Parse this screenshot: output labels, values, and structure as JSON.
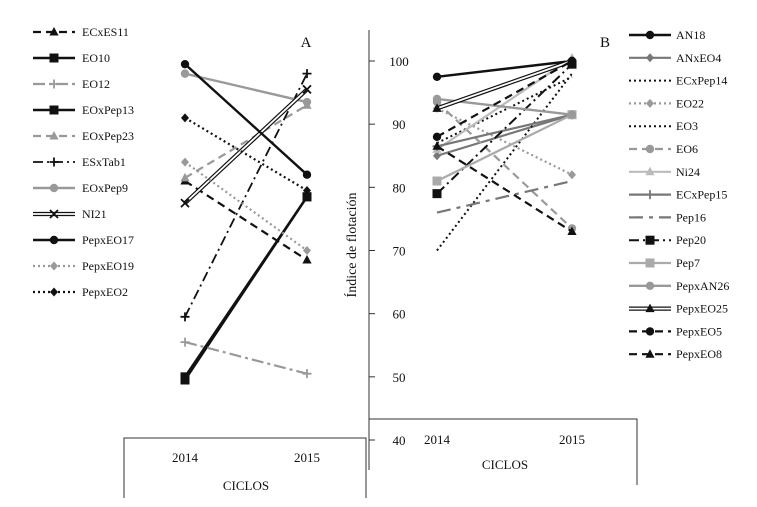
{
  "chart_data": [
    {
      "type": "line",
      "panel": "A",
      "xlabel": "CICLOS",
      "ylabel": "Índice de flotación",
      "ylim": [
        40,
        105
      ],
      "categories": [
        "2014",
        "2015"
      ],
      "series": [
        {
          "name": "ECxES11",
          "values": [
            81,
            68.5
          ],
          "color": "#111111",
          "dash": "8,5",
          "marker": "triangle",
          "width": 2.2
        },
        {
          "name": "EO10",
          "values": [
            49.5,
            78.5
          ],
          "color": "#111111",
          "dash": "",
          "marker": "square",
          "width": 2.4
        },
        {
          "name": "EO12",
          "values": [
            55.5,
            50.5
          ],
          "color": "#999999",
          "dash": "12,4,3,4",
          "marker": "plus",
          "width": 2.2
        },
        {
          "name": "EOxPep13",
          "values": [
            50,
            78.5
          ],
          "color": "#111111",
          "dash": "",
          "marker": "square",
          "width": 2.4
        },
        {
          "name": "EOxPep23",
          "values": [
            81.5,
            93
          ],
          "color": "#999999",
          "dash": "8,5",
          "marker": "triangle",
          "width": 2.2
        },
        {
          "name": "ESxTab1",
          "values": [
            59.5,
            98
          ],
          "color": "#111111",
          "dash": "10,4,2,4",
          "marker": "plus",
          "width": 1.8
        },
        {
          "name": "EOxPep9",
          "values": [
            98,
            93.5
          ],
          "color": "#999999",
          "dash": "",
          "marker": "circle",
          "width": 2.4
        },
        {
          "name": "NI21",
          "values": [
            77.5,
            95.5
          ],
          "color": "#111111",
          "dash": "",
          "marker": "x",
          "width": 1.2
        },
        {
          "name": "PepxEO17",
          "values": [
            99.5,
            82
          ],
          "color": "#111111",
          "dash": "",
          "marker": "circle",
          "width": 2.4
        },
        {
          "name": "PepxEO19",
          "values": [
            84,
            70
          ],
          "color": "#999999",
          "dash": "2,3",
          "marker": "diamond",
          "width": 2.2
        },
        {
          "name": "PepxEO2",
          "values": [
            91,
            79.5
          ],
          "color": "#111111",
          "dash": "2,3",
          "marker": "diamond",
          "width": 2.2
        }
      ]
    },
    {
      "type": "line",
      "panel": "B",
      "xlabel": "CICLOS",
      "ylabel": "Índice de flotación",
      "ylim": [
        40,
        105
      ],
      "categories": [
        "2014",
        "2015"
      ],
      "series": [
        {
          "name": "AN18",
          "values": [
            97.5,
            100
          ],
          "color": "#111111",
          "dash": "",
          "marker": "circle",
          "width": 2.4
        },
        {
          "name": "ANxEO4",
          "values": [
            85,
            91.5
          ],
          "color": "#777777",
          "dash": "",
          "marker": "diamond",
          "width": 2.2
        },
        {
          "name": "ECxPep14",
          "values": [
            87,
            97.5
          ],
          "color": "#111111",
          "dash": "2,3",
          "marker": "none",
          "width": 2.0
        },
        {
          "name": "EO22",
          "values": [
            92.5,
            82
          ],
          "color": "#999999",
          "dash": "2,3",
          "marker": "diamond",
          "width": 2.2
        },
        {
          "name": "EO3",
          "values": [
            70,
            98
          ],
          "color": "#111111",
          "dash": "2,3",
          "marker": "none",
          "width": 2.0
        },
        {
          "name": "EO6",
          "values": [
            93.5,
            73.5
          ],
          "color": "#999999",
          "dash": "8,5",
          "marker": "circle",
          "width": 2.2
        },
        {
          "name": "Ni24",
          "values": [
            86,
            100.5
          ],
          "color": "#bbbbbb",
          "dash": "",
          "marker": "triangle",
          "width": 2.2
        },
        {
          "name": "ECxPep15",
          "values": [
            86.5,
            91.5
          ],
          "color": "#777777",
          "dash": "",
          "marker": "plus",
          "width": 2.2
        },
        {
          "name": "Pep16",
          "values": [
            76,
            81
          ],
          "color": "#777777",
          "dash": "14,6,4,6",
          "marker": "none",
          "width": 2.2
        },
        {
          "name": "Pep20",
          "values": [
            79,
            99.5
          ],
          "color": "#111111",
          "dash": "10,4,2,4",
          "marker": "square",
          "width": 2.0
        },
        {
          "name": "Pep7",
          "values": [
            81,
            91.5
          ],
          "color": "#aaaaaa",
          "dash": "",
          "marker": "square",
          "width": 2.2
        },
        {
          "name": "PepxAN26",
          "values": [
            94,
            91.5
          ],
          "color": "#999999",
          "dash": "",
          "marker": "circle",
          "width": 2.4
        },
        {
          "name": "PepxEO25",
          "values": [
            92.5,
            100
          ],
          "color": "#111111",
          "dash": "",
          "marker": "triangle",
          "width": 1.2
        },
        {
          "name": "PepxEO5",
          "values": [
            88,
            100
          ],
          "color": "#111111",
          "dash": "8,5",
          "marker": "circle",
          "width": 2.2
        },
        {
          "name": "PepxEO8",
          "values": [
            86.5,
            73
          ],
          "color": "#111111",
          "dash": "8,5",
          "marker": "triangle",
          "width": 2.2
        }
      ]
    }
  ],
  "shared": {
    "yticks": [
      40,
      50,
      60,
      70,
      80,
      90,
      100
    ]
  }
}
